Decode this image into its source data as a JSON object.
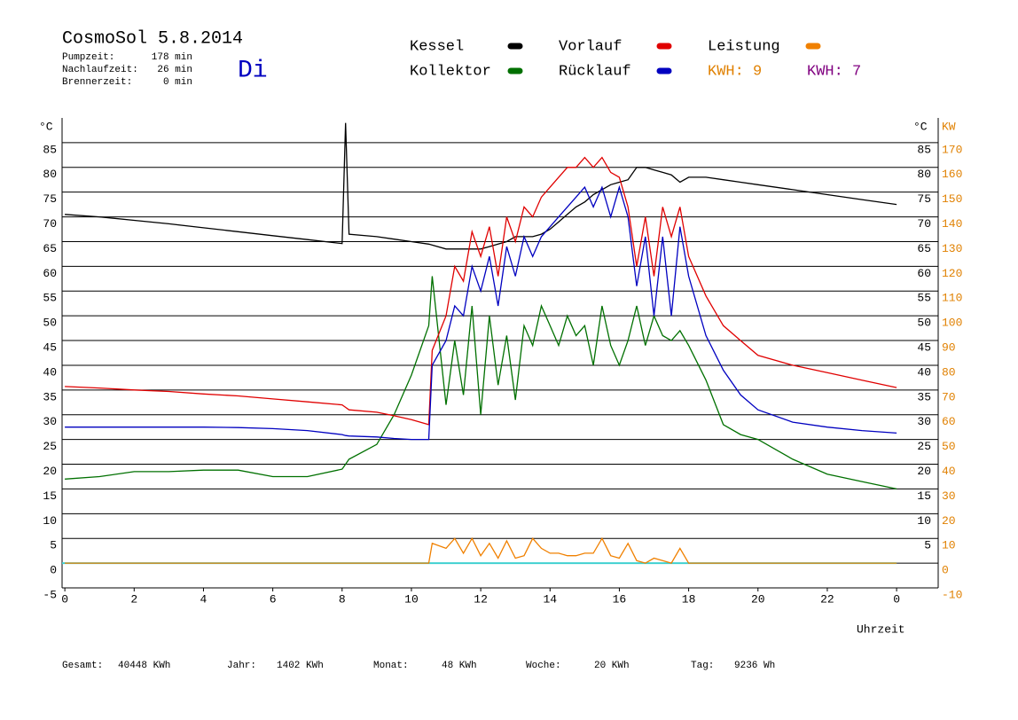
{
  "chart_data": {
    "type": "line",
    "title": "CosmoSol 5.8.2014",
    "weekday": "Di",
    "stats": [
      [
        "Pumpzeit:",
        "178 min"
      ],
      [
        "Nachlaufzeit:",
        "26 min"
      ],
      [
        "Brennerzeit:",
        "0 min"
      ]
    ],
    "kwh_labels": [
      {
        "text": "KWH: 9",
        "color": "#e08000"
      },
      {
        "text": "KWH: 7",
        "color": "#800080"
      }
    ],
    "totals": [
      [
        "Gesamt:",
        "40448 KWh"
      ],
      [
        "Jahr:",
        "1402 KWh"
      ],
      [
        "Monat:",
        "48 KWh"
      ],
      [
        "Woche:",
        "20 KWh"
      ],
      [
        "Tag:",
        "9236 Wh"
      ]
    ],
    "y_label": "°C",
    "y2_label": "KW",
    "x_label": "Uhrzeit",
    "x": [
      0,
      1,
      2,
      3,
      4,
      5,
      6,
      7,
      8,
      8.1,
      8.2,
      9,
      9.5,
      10,
      10.5,
      10.6,
      11,
      11.25,
      11.5,
      11.75,
      12,
      12.25,
      12.5,
      12.75,
      13,
      13.25,
      13.5,
      13.75,
      14,
      14.25,
      14.5,
      14.75,
      15,
      15.25,
      15.5,
      15.75,
      16,
      16.25,
      16.5,
      16.75,
      17,
      17.25,
      17.5,
      17.75,
      18,
      18.5,
      19,
      19.5,
      20,
      21,
      22,
      23,
      24
    ],
    "series": [
      {
        "name": "Kessel",
        "color": "#000000",
        "values": [
          70.5,
          70,
          69.3,
          68.6,
          67.8,
          67,
          66.2,
          65.4,
          64.6,
          89,
          66.5,
          66,
          65.5,
          65,
          64.5,
          64.3,
          63.5,
          63.5,
          63.5,
          63.5,
          63.5,
          64,
          64.5,
          65,
          66,
          66,
          66,
          66.5,
          67.5,
          69,
          70.5,
          72,
          73,
          74.5,
          75.5,
          76.5,
          77,
          77.5,
          80,
          80,
          79.5,
          79,
          78.5,
          77,
          78,
          78,
          77.5,
          77,
          76.5,
          75.5,
          74.5,
          73.5,
          72.5
        ]
      },
      {
        "name": "Kollektor",
        "color": "#007000",
        "values": [
          17,
          17.5,
          18.5,
          18.5,
          18.8,
          18.8,
          17.5,
          17.5,
          19,
          20,
          21,
          24,
          30,
          38,
          48,
          58,
          32,
          45,
          34,
          52,
          30,
          50,
          36,
          46,
          33,
          48,
          44,
          52,
          48,
          44,
          50,
          46,
          48,
          40,
          52,
          44,
          40,
          45,
          52,
          44,
          50,
          46,
          45,
          47,
          44,
          37,
          28,
          26,
          25,
          21,
          18,
          16.5,
          15
        ]
      },
      {
        "name": "Vorlauf",
        "color": "#e00000",
        "values": [
          35.7,
          35.4,
          35,
          34.7,
          34.2,
          33.8,
          33.2,
          32.6,
          32,
          31.5,
          31,
          30.5,
          29.8,
          29,
          28,
          43,
          50,
          60,
          57,
          67,
          62,
          68,
          58,
          70,
          65,
          72,
          70,
          74,
          76,
          78,
          80,
          80,
          82,
          80,
          82,
          79,
          78,
          72,
          60,
          70,
          58,
          72,
          66,
          72,
          62,
          54,
          48,
          45,
          42,
          40,
          38.5,
          37,
          35.5
        ]
      },
      {
        "name": "Rücklauf",
        "color": "#0000c0",
        "values": [
          27.5,
          27.5,
          27.5,
          27.5,
          27.5,
          27.4,
          27.2,
          26.8,
          26,
          25.8,
          25.7,
          25.5,
          25.2,
          25,
          25,
          40,
          45,
          52,
          50,
          60,
          55,
          62,
          52,
          64,
          58,
          66,
          62,
          66,
          68,
          70,
          72,
          74,
          76,
          72,
          76,
          70,
          76,
          70,
          56,
          66,
          50,
          66,
          50,
          68,
          58,
          46,
          39,
          34,
          31,
          28.5,
          27.5,
          26.8,
          26.3
        ]
      },
      {
        "name": "Leistung",
        "color": "#f08000",
        "axis": "y2",
        "values": [
          0,
          0,
          0,
          0,
          0,
          0,
          0,
          0,
          0,
          0,
          0,
          0,
          0,
          0,
          0,
          8,
          6,
          10,
          4,
          10,
          3,
          8,
          2,
          9,
          2,
          3,
          10,
          6,
          4,
          4,
          3,
          3,
          4,
          4,
          10,
          3,
          2,
          8,
          1,
          0,
          2,
          1,
          0,
          6,
          0,
          0,
          0,
          0,
          0,
          0,
          0,
          0,
          0
        ]
      }
    ],
    "xlim": [
      -0.08,
      25.2
    ],
    "xticks": [
      0,
      2,
      4,
      6,
      8,
      10,
      12,
      14,
      16,
      18,
      20,
      22,
      {
        "value": 24,
        "label": "0"
      }
    ],
    "ylim": [
      -5,
      90
    ],
    "yticks": [
      -5,
      0,
      5,
      10,
      15,
      20,
      25,
      30,
      35,
      40,
      45,
      50,
      55,
      60,
      65,
      70,
      75,
      80,
      85
    ],
    "y2lim": [
      -10,
      180
    ],
    "y2ticks": [
      -10,
      0,
      10,
      20,
      30,
      40,
      50,
      60,
      70,
      80,
      90,
      100,
      110,
      120,
      130,
      140,
      150,
      160,
      170
    ],
    "y2color": "#e08000",
    "grid": true
  }
}
